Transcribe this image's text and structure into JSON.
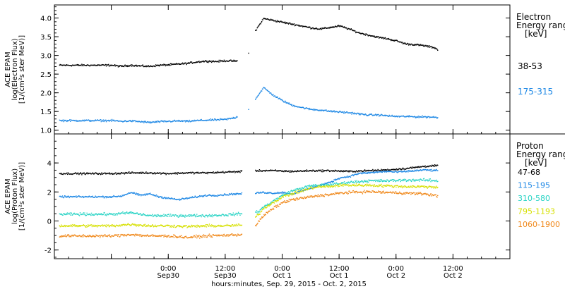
{
  "chart_data": [
    {
      "type": "scatter",
      "ylabel": [
        "ACE EPAM",
        "log(Electron Flux)",
        "[1/(cm²s ster MeV)]"
      ],
      "ylim": [
        0.9,
        4.35
      ],
      "yticks": [
        "1.0",
        "1.5",
        "2.0",
        "2.5",
        "3.0",
        "3.5",
        "4.0"
      ],
      "legend_title": [
        "Electron",
        "Energy ranges",
        "[keV]"
      ],
      "x_hours_note": "x values in hours from 2015-09-29 12:00 UTC",
      "series": [
        {
          "name": "38-53",
          "color": "#000000",
          "x": [
            0,
            2,
            4,
            6,
            8,
            10,
            12,
            14,
            16,
            18,
            20,
            22,
            24,
            26,
            28,
            29,
            30,
            32,
            34,
            36,
            38,
            40,
            42,
            44,
            46,
            48,
            50,
            52,
            54,
            56,
            58,
            60,
            62,
            64,
            66,
            68,
            68.7
          ],
          "y": [
            2.75,
            2.72,
            2.75,
            2.73,
            2.72,
            2.75,
            2.76,
            2.78,
            2.8,
            2.84,
            2.86,
            2.85,
            2.87,
            2.86,
            2.88,
            3.1,
            3.62,
            4.0,
            3.95,
            3.9,
            3.85,
            3.8,
            3.75,
            3.72,
            3.76,
            3.8,
            3.72,
            3.62,
            3.56,
            3.5,
            3.46,
            3.4,
            3.32,
            3.3,
            3.27,
            3.22,
            3.17
          ]
        },
        {
          "name": "175-315",
          "color": "#1e88e5",
          "x": [
            0,
            2,
            4,
            6,
            8,
            10,
            12,
            14,
            16,
            18,
            20,
            22,
            24,
            26,
            28,
            29,
            30,
            32,
            34,
            36,
            38,
            40,
            42,
            44,
            46,
            48,
            50,
            52,
            54,
            56,
            58,
            60,
            62,
            64,
            66,
            68,
            68.7
          ],
          "y": [
            1.27,
            1.25,
            1.26,
            1.24,
            1.22,
            1.24,
            1.25,
            1.26,
            1.25,
            1.27,
            1.28,
            1.29,
            1.3,
            1.35,
            1.45,
            1.6,
            1.8,
            2.15,
            1.95,
            1.8,
            1.68,
            1.62,
            1.57,
            1.55,
            1.52,
            1.5,
            1.48,
            1.45,
            1.42,
            1.42,
            1.4,
            1.38,
            1.38,
            1.37,
            1.37,
            1.36,
            1.35
          ]
        }
      ]
    },
    {
      "type": "scatter",
      "ylabel": [
        "ACE EPAM",
        "log(Proton Flux)",
        "[1/(cm²s ster MeV)]"
      ],
      "ylim": [
        -2.6,
        6.0
      ],
      "yticks": [
        "-2",
        "0",
        "2",
        "4"
      ],
      "legend_title": [
        "Proton",
        "Energy ranges",
        "[keV]"
      ],
      "xlabel": "hours:minutes, Sep. 29, 2015 - Oct. 2, 2015",
      "xticks": [
        {
          "top": "0:00",
          "bottom": "Sep30"
        },
        {
          "top": "12:00",
          "bottom": "Sep30"
        },
        {
          "top": "0:00",
          "bottom": "Oct 1"
        },
        {
          "top": "12:00",
          "bottom": "Oct 1"
        },
        {
          "top": "0:00",
          "bottom": "Oct 2"
        },
        {
          "top": "12:00",
          "bottom": "Oct 2"
        }
      ],
      "series": [
        {
          "name": "47-68",
          "color": "#000000",
          "x": [
            0,
            4,
            8,
            12,
            16,
            20,
            24,
            28,
            30,
            34,
            38,
            42,
            46,
            50,
            54,
            58,
            62,
            66,
            68.7
          ],
          "y": [
            3.3,
            3.35,
            3.35,
            3.3,
            3.35,
            3.35,
            3.4,
            3.45,
            3.5,
            3.5,
            3.45,
            3.5,
            3.5,
            3.45,
            3.5,
            3.55,
            3.65,
            3.8,
            3.85
          ]
        },
        {
          "name": "115-195",
          "color": "#1e88e5",
          "x": [
            0,
            2,
            4,
            6,
            8,
            10,
            12,
            14,
            16,
            18,
            20,
            22,
            24,
            26,
            28,
            30,
            32,
            34,
            36,
            38,
            40,
            42,
            44,
            46,
            48,
            50,
            52,
            54,
            56,
            58,
            60,
            62,
            64,
            66,
            68.7
          ],
          "y": [
            1.7,
            1.75,
            2.0,
            1.8,
            1.9,
            1.7,
            1.6,
            1.5,
            1.6,
            1.7,
            1.8,
            1.8,
            1.85,
            1.9,
            1.9,
            1.95,
            2.0,
            1.95,
            2.0,
            1.9,
            2.1,
            2.3,
            2.5,
            2.7,
            3.0,
            3.1,
            3.3,
            3.35,
            3.4,
            3.45,
            3.4,
            3.45,
            3.5,
            3.55,
            3.5
          ]
        },
        {
          "name": "310-580",
          "color": "#26d3c4",
          "x": [
            0,
            4,
            8,
            12,
            16,
            20,
            24,
            28,
            30,
            31,
            32,
            34,
            36,
            38,
            40,
            42,
            44,
            46,
            48,
            50,
            54,
            58,
            62,
            66,
            68.7
          ],
          "y": [
            0.5,
            0.6,
            0.4,
            0.4,
            0.4,
            0.4,
            0.45,
            0.55,
            0.6,
            0.7,
            1.0,
            1.4,
            1.8,
            2.1,
            2.3,
            2.45,
            2.5,
            2.55,
            2.6,
            2.7,
            2.8,
            2.8,
            2.85,
            2.85,
            2.8
          ]
        },
        {
          "name": "795-1193",
          "color": "#d6e000",
          "x": [
            0,
            4,
            8,
            12,
            16,
            20,
            24,
            28,
            30,
            31,
            32,
            34,
            36,
            38,
            40,
            42,
            44,
            46,
            48,
            50,
            54,
            58,
            62,
            66,
            68.7
          ],
          "y": [
            -0.3,
            -0.2,
            -0.3,
            -0.3,
            -0.35,
            -0.3,
            -0.3,
            -0.25,
            0.2,
            0.5,
            0.9,
            1.3,
            1.7,
            1.9,
            2.1,
            2.3,
            2.4,
            2.4,
            2.5,
            2.5,
            2.5,
            2.45,
            2.4,
            2.4,
            2.35
          ]
        },
        {
          "name": "1060-1900",
          "color": "#f0881a",
          "x": [
            0,
            4,
            8,
            12,
            16,
            20,
            24,
            28,
            30,
            31,
            32,
            34,
            36,
            38,
            40,
            42,
            44,
            46,
            48,
            50,
            54,
            58,
            62,
            66,
            68.7
          ],
          "y": [
            -1.0,
            -0.9,
            -1.0,
            -1.0,
            -1.1,
            -1.0,
            -0.95,
            -0.9,
            -0.4,
            0.0,
            0.4,
            0.9,
            1.3,
            1.5,
            1.6,
            1.7,
            1.8,
            1.85,
            1.95,
            2.0,
            2.05,
            2.0,
            1.95,
            1.9,
            1.75
          ]
        }
      ]
    }
  ]
}
